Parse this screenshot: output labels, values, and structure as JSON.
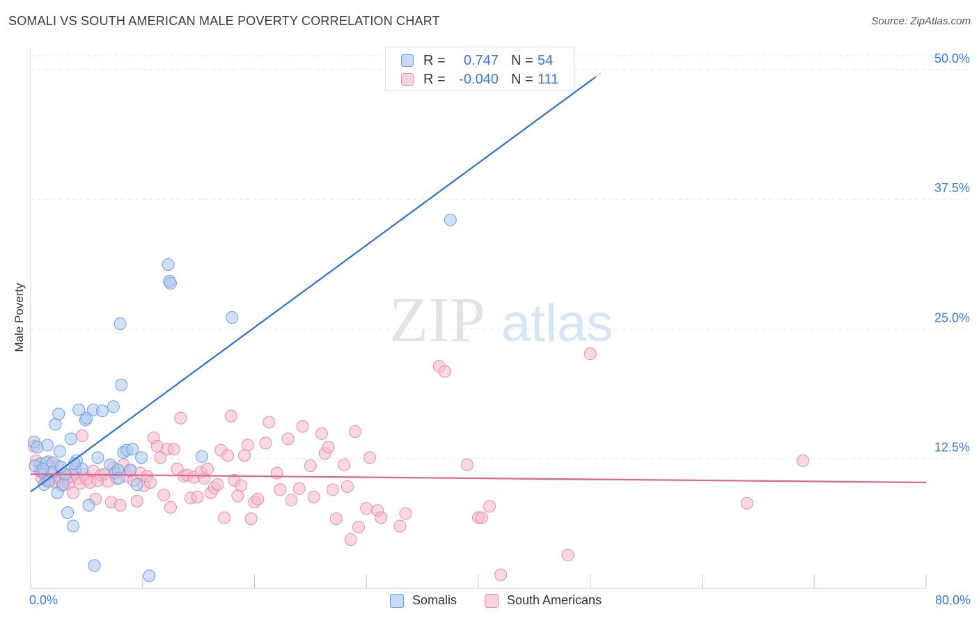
{
  "header": {
    "title": "SOMALI VS SOUTH AMERICAN MALE POVERTY CORRELATION CHART",
    "source": "Source: ZipAtlas.com"
  },
  "watermark": {
    "zip": "ZIP",
    "atlas": "atlas"
  },
  "legend": {
    "rows": [
      {
        "r_label": "R =",
        "r_value": "0.747",
        "n_label": "N =",
        "n_value": "54"
      },
      {
        "r_label": "R =",
        "r_value": "-0.040",
        "n_label": "N =",
        "n_value": "111"
      }
    ]
  },
  "bottom_legend": {
    "somalis": "Somalis",
    "south_americans": "South Americans"
  },
  "x_axis_labels": {
    "min": "0.0%",
    "max": "80.0%"
  },
  "colors": {
    "somali_fill": "#a9c8f0",
    "somali_stroke": "#6f9fd8",
    "somali_line": "#2f6fcf",
    "southam_fill": "#f5b8cc",
    "southam_stroke": "#e58aa8",
    "southam_line": "#e0628c",
    "tick_label": "#3c78d8",
    "grid": "#e4e4e4"
  },
  "chart_data": {
    "type": "scatter",
    "title": "SOMALI VS SOUTH AMERICAN MALE POVERTY CORRELATION CHART",
    "xlabel": "",
    "ylabel": "Male Poverty",
    "xlim": [
      0,
      80
    ],
    "ylim": [
      0,
      52
    ],
    "x_ticks": [
      {
        "value": 0,
        "label": "0.0%"
      },
      {
        "value": 80,
        "label": "80.0%"
      }
    ],
    "y_ticks": [
      {
        "value": 12.5,
        "label": "12.5%"
      },
      {
        "value": 25,
        "label": "25.0%"
      },
      {
        "value": 37.5,
        "label": "37.5%"
      },
      {
        "value": 50,
        "label": "50.0%"
      }
    ],
    "grid": true,
    "series": [
      {
        "name": "Somalis",
        "r": 0.747,
        "n": 54,
        "trend": {
          "x": [
            0,
            50.5
          ],
          "y": [
            9.3,
            49.3
          ]
        },
        "points": [
          [
            0.3,
            14.1
          ],
          [
            0.6,
            13.6
          ],
          [
            0.9,
            12.0
          ],
          [
            1.0,
            11.3
          ],
          [
            1.2,
            10.0
          ],
          [
            1.4,
            12.1
          ],
          [
            1.6,
            10.3
          ],
          [
            1.5,
            13.8
          ],
          [
            2.0,
            12.1
          ],
          [
            1.9,
            11.2
          ],
          [
            2.2,
            15.8
          ],
          [
            2.4,
            9.2
          ],
          [
            2.6,
            13.2
          ],
          [
            2.5,
            16.8
          ],
          [
            2.9,
            10.0
          ],
          [
            3.1,
            11.0
          ],
          [
            3.3,
            7.3
          ],
          [
            3.6,
            14.4
          ],
          [
            3.8,
            6.0
          ],
          [
            4.0,
            11.5
          ],
          [
            4.1,
            12.3
          ],
          [
            4.3,
            17.2
          ],
          [
            4.6,
            11.5
          ],
          [
            4.9,
            16.2
          ],
          [
            5.0,
            16.4
          ],
          [
            5.2,
            8.0
          ],
          [
            5.6,
            17.2
          ],
          [
            5.7,
            2.2
          ],
          [
            6.0,
            12.6
          ],
          [
            6.4,
            17.1
          ],
          [
            7.1,
            11.9
          ],
          [
            7.5,
            11.1
          ],
          [
            7.4,
            17.5
          ],
          [
            7.8,
            11.4
          ],
          [
            7.9,
            10.6
          ],
          [
            8.0,
            25.5
          ],
          [
            8.1,
            19.6
          ],
          [
            8.3,
            13.1
          ],
          [
            8.6,
            13.3
          ],
          [
            8.9,
            11.4
          ],
          [
            9.1,
            13.4
          ],
          [
            9.5,
            10.0
          ],
          [
            9.9,
            12.6
          ],
          [
            10.6,
            1.2
          ],
          [
            12.3,
            31.2
          ],
          [
            12.4,
            29.6
          ],
          [
            12.5,
            29.4
          ],
          [
            15.3,
            12.7
          ],
          [
            18.0,
            26.1
          ],
          [
            37.5,
            35.5
          ],
          [
            0.4,
            11.8
          ],
          [
            1.1,
            11.5
          ],
          [
            3.9,
            12.0
          ],
          [
            2.7,
            11.7
          ]
        ]
      },
      {
        "name": "South Americans",
        "r": -0.04,
        "n": 111,
        "trend": {
          "x": [
            0,
            80
          ],
          "y": [
            11.0,
            10.2
          ]
        },
        "points": [
          [
            0.3,
            13.7
          ],
          [
            0.5,
            12.3
          ],
          [
            0.8,
            11.3
          ],
          [
            1.0,
            10.6
          ],
          [
            1.2,
            11.0
          ],
          [
            1.4,
            10.4
          ],
          [
            1.6,
            12.2
          ],
          [
            1.8,
            10.5
          ],
          [
            2.0,
            11.0
          ],
          [
            2.2,
            10.2
          ],
          [
            2.4,
            11.8
          ],
          [
            2.6,
            10.7
          ],
          [
            2.8,
            9.9
          ],
          [
            3.0,
            11.0
          ],
          [
            3.2,
            10.5
          ],
          [
            3.4,
            10.1
          ],
          [
            3.6,
            10.8
          ],
          [
            3.8,
            9.2
          ],
          [
            4.0,
            11.2
          ],
          [
            4.2,
            10.6
          ],
          [
            4.4,
            10.1
          ],
          [
            4.6,
            14.7
          ],
          [
            4.8,
            11.0
          ],
          [
            5.0,
            10.5
          ],
          [
            5.3,
            10.2
          ],
          [
            5.6,
            11.3
          ],
          [
            5.8,
            8.6
          ],
          [
            6.0,
            10.4
          ],
          [
            6.3,
            10.9
          ],
          [
            6.6,
            11.0
          ],
          [
            6.9,
            10.3
          ],
          [
            7.2,
            8.3
          ],
          [
            7.4,
            11.6
          ],
          [
            7.7,
            10.6
          ],
          [
            8.0,
            8.0
          ],
          [
            8.3,
            11.9
          ],
          [
            8.6,
            10.8
          ],
          [
            8.9,
            11.3
          ],
          [
            9.2,
            10.4
          ],
          [
            9.5,
            8.4
          ],
          [
            9.8,
            11.1
          ],
          [
            10.1,
            9.9
          ],
          [
            10.4,
            10.8
          ],
          [
            10.7,
            10.2
          ],
          [
            11.0,
            14.5
          ],
          [
            11.3,
            13.7
          ],
          [
            11.6,
            12.6
          ],
          [
            11.9,
            9.0
          ],
          [
            12.2,
            13.4
          ],
          [
            12.5,
            7.8
          ],
          [
            12.8,
            13.4
          ],
          [
            13.1,
            11.5
          ],
          [
            13.4,
            16.4
          ],
          [
            13.7,
            10.8
          ],
          [
            14.0,
            10.9
          ],
          [
            14.3,
            8.7
          ],
          [
            14.6,
            10.7
          ],
          [
            14.9,
            8.8
          ],
          [
            15.2,
            11.2
          ],
          [
            15.5,
            10.6
          ],
          [
            15.8,
            11.5
          ],
          [
            16.1,
            9.2
          ],
          [
            16.4,
            9.7
          ],
          [
            16.7,
            10.0
          ],
          [
            17.0,
            13.3
          ],
          [
            17.3,
            6.8
          ],
          [
            17.6,
            12.8
          ],
          [
            17.9,
            16.6
          ],
          [
            18.2,
            10.4
          ],
          [
            18.5,
            8.9
          ],
          [
            18.8,
            9.9
          ],
          [
            19.1,
            12.8
          ],
          [
            19.4,
            13.8
          ],
          [
            19.7,
            6.7
          ],
          [
            20.0,
            8.3
          ],
          [
            20.3,
            8.6
          ],
          [
            21.0,
            14.0
          ],
          [
            21.3,
            16.0
          ],
          [
            22.0,
            11.1
          ],
          [
            22.3,
            9.5
          ],
          [
            23.0,
            14.4
          ],
          [
            23.3,
            8.5
          ],
          [
            24.0,
            9.6
          ],
          [
            24.3,
            15.6
          ],
          [
            25.0,
            11.8
          ],
          [
            25.3,
            8.8
          ],
          [
            26.0,
            14.9
          ],
          [
            26.3,
            13.0
          ],
          [
            26.6,
            13.6
          ],
          [
            27.0,
            9.5
          ],
          [
            27.3,
            6.7
          ],
          [
            28.0,
            11.9
          ],
          [
            28.3,
            9.8
          ],
          [
            28.6,
            4.7
          ],
          [
            29.0,
            15.1
          ],
          [
            29.3,
            5.9
          ],
          [
            30.0,
            7.7
          ],
          [
            30.3,
            12.6
          ],
          [
            31.0,
            7.5
          ],
          [
            31.3,
            6.8
          ],
          [
            33.0,
            6.0
          ],
          [
            33.5,
            7.2
          ],
          [
            36.5,
            21.4
          ],
          [
            37.0,
            20.9
          ],
          [
            39.0,
            11.9
          ],
          [
            40.0,
            6.8
          ],
          [
            40.3,
            6.8
          ],
          [
            41.0,
            7.9
          ],
          [
            42.0,
            1.3
          ],
          [
            48.0,
            3.2
          ],
          [
            50.0,
            22.6
          ],
          [
            64.0,
            8.2
          ],
          [
            69.0,
            12.3
          ]
        ]
      }
    ]
  }
}
